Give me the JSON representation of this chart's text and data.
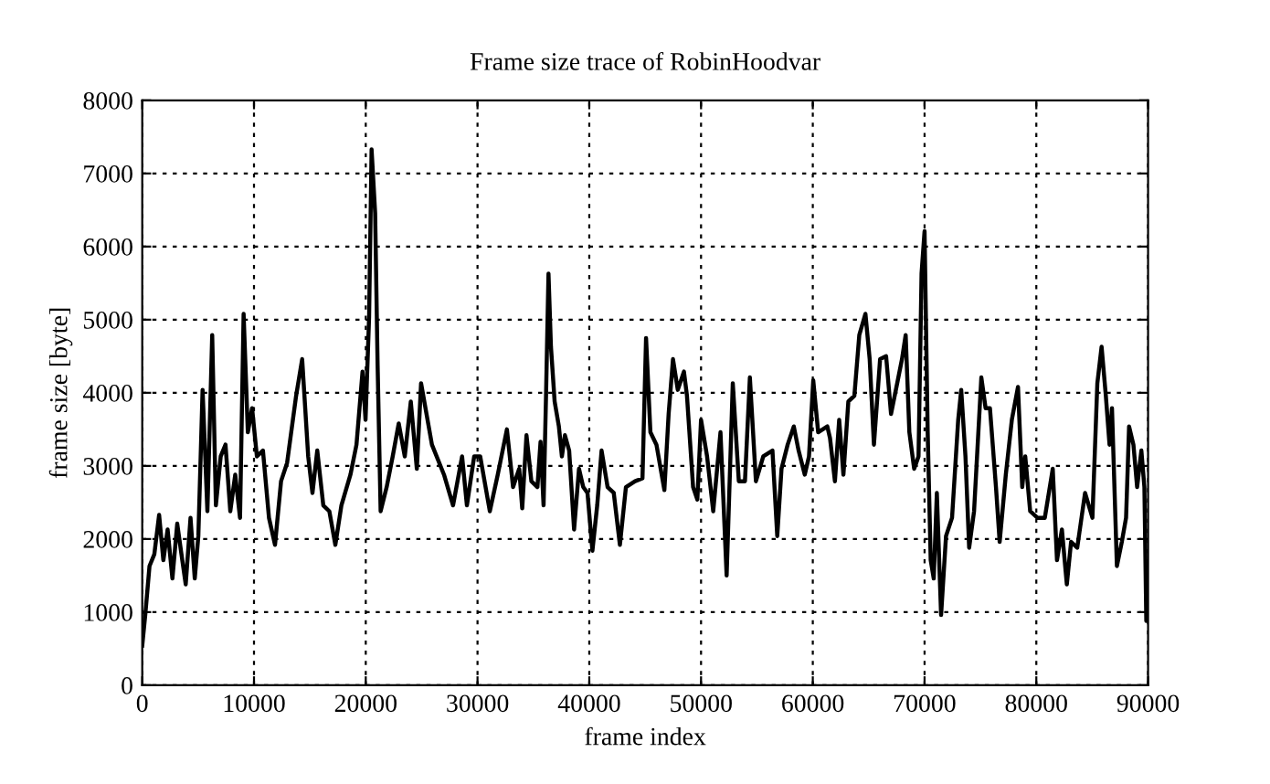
{
  "chart_data": {
    "type": "line",
    "title": "Frame size trace of RobinHoodvar",
    "xlabel": "frame index",
    "ylabel": "frame size [byte]",
    "xlim": [
      0,
      90000
    ],
    "xticks": [
      0,
      10000,
      20000,
      30000,
      40000,
      50000,
      60000,
      70000,
      80000,
      90000
    ],
    "ylim": [
      0,
      8000
    ],
    "yticks": [
      0,
      1000,
      2000,
      3000,
      4000,
      5000,
      6000,
      7000,
      8000
    ],
    "grid": true,
    "legend": false,
    "marker": "none",
    "line_style": "solid",
    "series": [
      {
        "color": "#000000",
        "x": [
          0,
          270,
          650,
          1080,
          1510,
          1890,
          2270,
          2700,
          3130,
          3510,
          3890,
          4320,
          4700,
          5020,
          5400,
          5830,
          6260,
          6590,
          7020,
          7450,
          7880,
          8320,
          8750,
          9070,
          9450,
          9830,
          10260,
          10800,
          11340,
          11880,
          12420,
          12960,
          13770,
          14310,
          14850,
          15230,
          15660,
          16200,
          16740,
          17280,
          17820,
          18630,
          19170,
          19710,
          19980,
          20300,
          20520,
          20840,
          21060,
          21330,
          21870,
          22410,
          22950,
          23490,
          24030,
          24570,
          24950,
          25920,
          27000,
          27810,
          28620,
          29050,
          29700,
          30240,
          31100,
          31810,
          32630,
          33180,
          33730,
          34000,
          34380,
          34820,
          35360,
          35640,
          35910,
          36130,
          36350,
          36570,
          36900,
          37280,
          37550,
          37820,
          38200,
          38640,
          39080,
          39460,
          39840,
          40280,
          40710,
          41100,
          41640,
          42190,
          42740,
          43280,
          44100,
          44760,
          45080,
          45470,
          46010,
          46720,
          47100,
          47490,
          47920,
          48470,
          48740,
          49290,
          49670,
          50000,
          50540,
          51090,
          51740,
          52290,
          52840,
          53380,
          53930,
          54370,
          54910,
          55570,
          56390,
          56820,
          57200,
          57750,
          58300,
          58730,
          59280,
          59660,
          60040,
          60480,
          61300,
          61540,
          61980,
          62360,
          62740,
          63180,
          63720,
          64160,
          64710,
          65090,
          65470,
          66020,
          66560,
          67000,
          67550,
          67980,
          68310,
          68640,
          69070,
          69460,
          69730,
          70000,
          70280,
          70550,
          70820,
          71100,
          71480,
          71920,
          72460,
          73010,
          73280,
          73660,
          73990,
          74430,
          75080,
          75460,
          75850,
          76390,
          76720,
          77270,
          77810,
          78360,
          78740,
          79010,
          79450,
          80100,
          80760,
          81470,
          81850,
          82290,
          82730,
          83110,
          83660,
          84360,
          85020,
          85460,
          85840,
          86220,
          86550,
          86770,
          87210,
          87650,
          88030,
          88300,
          88690,
          89020,
          89400,
          89670,
          89840,
          89930
        ],
        "values": [
          540,
          960,
          1630,
          1790,
          2330,
          1710,
          2130,
          1460,
          2210,
          1790,
          1380,
          2290,
          1460,
          2040,
          4040,
          2380,
          4790,
          2460,
          3130,
          3290,
          2380,
          2880,
          2290,
          5080,
          3460,
          3790,
          3130,
          3210,
          2290,
          1920,
          2790,
          3040,
          3960,
          4460,
          3130,
          2630,
          3210,
          2460,
          2380,
          1920,
          2460,
          2880,
          3290,
          4290,
          3630,
          5040,
          7330,
          6460,
          4380,
          2380,
          2710,
          3130,
          3580,
          3130,
          3880,
          2960,
          4130,
          3290,
          2880,
          2460,
          3130,
          2460,
          3130,
          3130,
          2380,
          2880,
          3500,
          2710,
          2960,
          2420,
          3420,
          2790,
          2710,
          3330,
          2460,
          3960,
          5630,
          4630,
          3880,
          3540,
          3130,
          3420,
          3210,
          2130,
          2960,
          2710,
          2630,
          1840,
          2460,
          3210,
          2710,
          2630,
          1920,
          2710,
          2790,
          2830,
          4750,
          3460,
          3290,
          2670,
          3710,
          4460,
          4040,
          4290,
          3960,
          2710,
          2540,
          3630,
          3130,
          2380,
          3460,
          1500,
          4130,
          2790,
          2790,
          4210,
          2790,
          3130,
          3210,
          2040,
          2960,
          3290,
          3540,
          3210,
          2880,
          3130,
          4170,
          3460,
          3540,
          3380,
          2790,
          3630,
          2880,
          3880,
          3960,
          4790,
          5080,
          4460,
          3290,
          4460,
          4500,
          3710,
          4130,
          4460,
          4790,
          3460,
          2960,
          3130,
          5630,
          6210,
          3460,
          1710,
          1460,
          2630,
          960,
          2040,
          2290,
          3630,
          4040,
          3130,
          1880,
          2380,
          4210,
          3790,
          3790,
          2710,
          1960,
          2880,
          3630,
          4080,
          2710,
          3130,
          2380,
          2290,
          2290,
          2960,
          1710,
          2130,
          1380,
          1960,
          1880,
          2630,
          2290,
          4130,
          4630,
          3960,
          3290,
          3790,
          1630,
          1960,
          2290,
          3540,
          3290,
          2710,
          3210,
          2710,
          880,
          1050
        ]
      }
    ]
  }
}
